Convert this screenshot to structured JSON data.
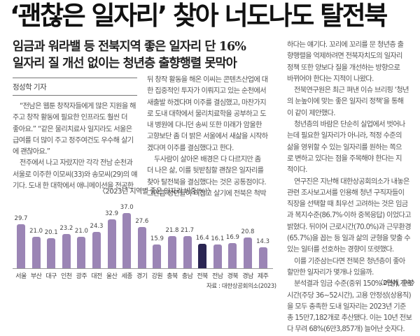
{
  "headline": "‘괜찮은 일자리’ 찾아 너도나도 탈전북",
  "subheads": [
    "임금과 워라밸 등 전북지역 좋은 일자리 단 16%",
    "일자리 질 개선 없이는 청년층 출향행렬 못막아"
  ],
  "byline": "정성학 기자",
  "columns": {
    "col1": [
      {
        "indent": true,
        "text": "“전남은 웹툰 창작자들에게 많은 지원을 해"
      },
      {
        "indent": false,
        "text": "주고 창작 활동에 필요한 인프라도 훨씬 더"
      },
      {
        "indent": false,
        "text": "좋아요.” “같은 물리치료사 일지라도 서울은"
      },
      {
        "indent": false,
        "text": "급여를 더 많이 주고 정주여건도 우수해 살기"
      },
      {
        "indent": false,
        "text": "에 괜찮아요.”"
      },
      {
        "indent": true,
        "text": "전주에서 나고 자랐지만 각각 전남 순천과"
      },
      {
        "indent": false,
        "text": "서울로 이주한 이모씨(33)와 송모씨(29)의 얘"
      },
      {
        "indent": false,
        "text": "기다. 도내 한 대학에서 애니메이션을 전공한"
      }
    ],
    "col2": [
      {
        "indent": false,
        "text": "뒤 창작 활동을 해온 이씨는 콘텐츠산업에 대"
      },
      {
        "indent": false,
        "text": "한 집중적인 투자가 이뤄지고 있는 순천에서"
      },
      {
        "indent": false,
        "text": "새출발 하겠다며 이주를 결심했고, 마찬가지"
      },
      {
        "indent": false,
        "text": "로 도내 대학에서 물리치료학을 공부하고 도"
      },
      {
        "indent": false,
        "text": "내 병원에 다니던 송씨 또한 미래가 암울한"
      },
      {
        "indent": false,
        "text": "고향보단 좀 더 밝은 서울에서 새삶을 시작하"
      },
      {
        "indent": false,
        "text": "겠다며 이주를 결심했다고 한다."
      },
      {
        "indent": true,
        "text": "두사람이 살아온 배경은 다 다르지만 좀"
      },
      {
        "indent": false,
        "text": "더 나은 삶, 이를 뒷받침할 괜찮은 일자리를"
      },
      {
        "indent": false,
        "text": "찾아 탈전북을 결심했다는 것은 공통점이다."
      },
      {
        "indent": false,
        "text": "그만큼 청년들이 터잡고 살기에 전북은 척박"
      }
    ],
    "col3": [
      {
        "indent": false,
        "text": "하다는 얘기다. 꼬리에 꼬리를 문 청년층 출"
      },
      {
        "indent": false,
        "text": "향행렬을 억제하려면 전북자치도의 일자리"
      },
      {
        "indent": false,
        "text": "정책 또한 양보다 질을 개선하는 방향으로"
      },
      {
        "indent": false,
        "text": "바뀌어야 한다는 지적이 나왔다."
      },
      {
        "indent": true,
        "text": "전북연구원은 최근 펴낸 이슈 브리핑 ‘청년"
      },
      {
        "indent": false,
        "text": "의 눈높이에 맞는 좋은 일자리 정책’을 통해"
      },
      {
        "indent": false,
        "text": "이 같이 제안했다."
      },
      {
        "indent": true,
        "text": "청년층의 바람은 단순히 실업에서 벗어나"
      },
      {
        "indent": false,
        "text": "는데 필요한 일자리가 아니라, 적정 수준의"
      },
      {
        "indent": false,
        "text": "삶을 영위할 수 있는 일자리를 원하는 쪽으"
      },
      {
        "indent": false,
        "text": "로 변하고 있다는 점을 주목해야 한다는 지"
      },
      {
        "indent": false,
        "text": "적이다."
      },
      {
        "indent": true,
        "text": "연구진은 지난해 대한상공회의소가 내놓은"
      },
      {
        "indent": false,
        "text": "관련 조사보고서를 인용해 청년 구직자들이"
      },
      {
        "indent": false,
        "text": "직장을 선택할 때 최우선 고려하는 것은 임금"
      },
      {
        "indent": false,
        "text": "과 복지수준(86.7%·이하 중복응답) 이었다고"
      },
      {
        "indent": false,
        "text": "밝혔다. 뒤이어 근로시간(70.0%)과 근무환경"
      },
      {
        "indent": false,
        "text": "(65.7%)을 꼽는 등 일과 삶의 균형을 맞출 수"
      },
      {
        "indent": false,
        "text": "있는 일터를 선호하는 경향이 또렷했다."
      },
      {
        "indent": true,
        "text": "이를 기준삼는다면 전북은 청년층이 좋아"
      },
      {
        "indent": false,
        "text": "할만한 일자리가 몇개나 있을까."
      },
      {
        "indent": true,
        "text": "분석결과 임금 수준(중위 150% 이상), 근로"
      },
      {
        "indent": false,
        "text": "시간(주당 36~52시간), 고용 안정성(상용직)"
      },
      {
        "indent": false,
        "text": "을 모두 충족한 도내 일자리는 2023년 기준"
      },
      {
        "indent": false,
        "text": "총 15만7,182개로 추산됐다. 이는 10년 전보"
      },
      {
        "indent": false,
        "text": "다 무려 68%(6만3,857개) 늘어난 숫자다."
      }
    ]
  },
  "continuation": "〈2면에 계속〉",
  "chart_data": {
    "type": "bar",
    "title": "〈2023년 지역별 좋은 일자리 비중(%)〉",
    "xlabel": "",
    "ylabel": "",
    "categories": [
      "서울",
      "부산",
      "대구",
      "인천",
      "광주",
      "대전",
      "울산",
      "세종",
      "경기",
      "강원",
      "충북",
      "충남",
      "전북",
      "전남",
      "경북",
      "경남",
      "제주"
    ],
    "values": [
      29.7,
      21.0,
      20.1,
      23.2,
      21.0,
      24.3,
      32.9,
      37.0,
      27.6,
      15.9,
      21.8,
      21.7,
      16.4,
      16.1,
      16.9,
      20.8,
      14.3
    ],
    "value_labels": [
      "29.7",
      "21.0",
      "20.1",
      "23.2",
      "21.0",
      "24.3",
      "32.9",
      "37.0",
      "27.6",
      "15.9",
      "21.8",
      "21.7",
      "16.4",
      "16.1",
      "16.9",
      "20.8",
      "14.3"
    ],
    "highlight_index": 12,
    "colors": {
      "bar": "#9b85b5",
      "highlight": "#2a2552"
    },
    "ylim": [
      0,
      40
    ],
    "grid": false,
    "legend": "none",
    "source": "자료 : 대한상공회의소(2023)"
  }
}
